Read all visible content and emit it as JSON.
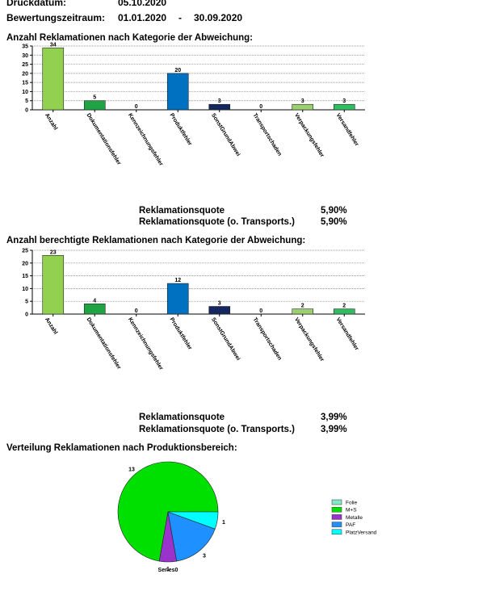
{
  "header": {
    "druckdatum_label": "Druckdatum:",
    "druckdatum_value": "05.10.2020",
    "zeitraum_label": "Bewertungszeitraum:",
    "zeitraum_from": "01.01.2020",
    "zeitraum_sep": "-",
    "zeitraum_to": "30.09.2020"
  },
  "sections": {
    "chart1_title": "Anzahl Reklamationen nach Kategorie der Abweichung:",
    "chart2_title": "Anzahl berechtigte Reklamationen nach Kategorie der Abweichung:",
    "chart3_title": "Verteilung Reklamationen nach Produktionsbereich:"
  },
  "quotes1": {
    "label1": "Reklamationsquote",
    "value1": "5,90%",
    "label2": "Reklamationsquote (o. Transports.)",
    "value2": "5,90%"
  },
  "quotes2": {
    "label1": "Reklamationsquote",
    "value1": "3,99%",
    "label2": "Reklamationsquote (o. Transports.)",
    "value2": "3,99%"
  },
  "chart_data": [
    {
      "type": "bar",
      "title": "Anzahl Reklamationen nach Kategorie der Abweichung:",
      "categories": [
        "Anzahl",
        "Dokumentationsfehler",
        "Kennzeichnungsfehler",
        "Produktfehler",
        "SonstGrundAbwei",
        "Transportschaden",
        "Verpackungsfehler",
        "Versandfehler"
      ],
      "values": [
        34,
        5,
        0,
        20,
        3,
        0,
        3,
        3
      ],
      "colors": [
        "#92d050",
        "#1fa345",
        "#1fa345",
        "#0070c0",
        "#14285f",
        "#1fa345",
        "#9ccf6e",
        "#2ebd60"
      ],
      "ylim": [
        0,
        35
      ],
      "yticks": [
        0,
        5,
        10,
        15,
        20,
        25,
        30,
        35
      ],
      "grid": true
    },
    {
      "type": "bar",
      "title": "Anzahl berechtigte Reklamationen nach Kategorie der Abweichung:",
      "categories": [
        "Anzahl",
        "Dokumentationsfehler",
        "Kennzeichnungsfehler",
        "Produktfehler",
        "SonstGrundAbwei",
        "Transportschaden",
        "Verpackungsfehler",
        "Versandfehler"
      ],
      "values": [
        23,
        4,
        0,
        12,
        3,
        0,
        2,
        2
      ],
      "colors": [
        "#92d050",
        "#1fa345",
        "#1fa345",
        "#0070c0",
        "#14285f",
        "#1fa345",
        "#9ccf6e",
        "#2ebd60"
      ],
      "ylim": [
        0,
        25
      ],
      "yticks": [
        0,
        5,
        10,
        15,
        20,
        25
      ],
      "grid": true
    },
    {
      "type": "pie",
      "title": "Verteilung Reklamationen nach Produktionsbereich:",
      "series_label": "Series0",
      "slices": [
        {
          "label": "Folie",
          "value": 0,
          "color": "#7fe8c8"
        },
        {
          "label": "M+S",
          "value": 13,
          "color": "#00e000"
        },
        {
          "label": "Metalle",
          "value": 1,
          "color": "#9933cc"
        },
        {
          "label": "PAF",
          "value": 3,
          "color": "#1e90ff"
        },
        {
          "label": "PlatzVersand",
          "value": 1,
          "color": "#00ffff"
        }
      ],
      "legend_position": "right"
    }
  ]
}
